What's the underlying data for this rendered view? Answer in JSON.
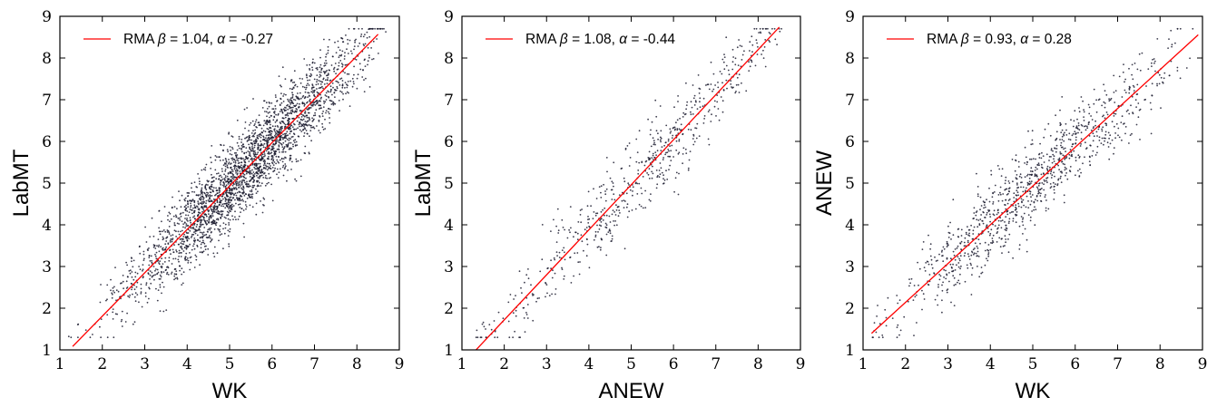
{
  "chart_data": [
    {
      "type": "scatter",
      "xlabel": "WK",
      "ylabel": "LabMT",
      "xlim": [
        1,
        9
      ],
      "ylim": [
        1,
        9
      ],
      "xticks": [
        "1",
        "2",
        "3",
        "4",
        "5",
        "6",
        "7",
        "8",
        "9"
      ],
      "yticks": [
        "1",
        "2",
        "3",
        "4",
        "5",
        "6",
        "7",
        "8",
        "9"
      ],
      "grid": false,
      "legend_position": "top-left",
      "legend": {
        "prefix": "RMA ",
        "beta_symbol": "β",
        "beta_text": " = 1.04, ",
        "alpha_symbol": "α",
        "alpha_text": " = -0.27"
      },
      "fit": {
        "slope": 1.04,
        "intercept": -0.27,
        "x_range": [
          1.3,
          8.5
        ],
        "color": "#ff0000"
      },
      "scatter": {
        "n": 2700,
        "x_mean": 5.4,
        "x_sd": 1.35,
        "x_range": [
          1.2,
          8.7
        ],
        "noise_sd": 0.5,
        "color": "#1a1a2e",
        "seed": 11
      }
    },
    {
      "type": "scatter",
      "xlabel": "ANEW",
      "ylabel": "LabMT",
      "xlim": [
        1,
        9
      ],
      "ylim": [
        1,
        9
      ],
      "xticks": [
        "1",
        "2",
        "3",
        "4",
        "5",
        "6",
        "7",
        "8",
        "9"
      ],
      "yticks": [
        "1",
        "2",
        "3",
        "4",
        "5",
        "6",
        "7",
        "8",
        "9"
      ],
      "grid": false,
      "legend_position": "top-left",
      "legend": {
        "prefix": "RMA ",
        "beta_symbol": "β",
        "beta_text": " = 1.08, ",
        "alpha_symbol": "α",
        "alpha_text": " = -0.44"
      },
      "fit": {
        "slope": 1.08,
        "intercept": -0.44,
        "x_range": [
          1.3,
          8.5
        ],
        "color": "#ff0000"
      },
      "scatter": {
        "n": 620,
        "x_mean": 5.3,
        "x_sd": 1.9,
        "x_range": [
          1.3,
          8.6
        ],
        "noise_sd": 0.45,
        "color": "#1a1a2e",
        "seed": 23
      }
    },
    {
      "type": "scatter",
      "xlabel": "WK",
      "ylabel": "ANEW",
      "xlim": [
        1,
        9
      ],
      "ylim": [
        1,
        9
      ],
      "xticks": [
        "1",
        "2",
        "3",
        "4",
        "5",
        "6",
        "7",
        "8",
        "9"
      ],
      "yticks": [
        "1",
        "2",
        "3",
        "4",
        "5",
        "6",
        "7",
        "8",
        "9"
      ],
      "grid": false,
      "legend_position": "top-left",
      "legend": {
        "prefix": "RMA ",
        "beta_symbol": "β",
        "beta_text": " = 0.93, ",
        "alpha_symbol": "α",
        "alpha_text": " = 0.28"
      },
      "fit": {
        "slope": 0.93,
        "intercept": 0.28,
        "x_range": [
          1.2,
          8.9
        ],
        "color": "#ff0000"
      },
      "scatter": {
        "n": 1000,
        "x_mean": 5.0,
        "x_sd": 1.7,
        "x_range": [
          1.2,
          8.8
        ],
        "noise_sd": 0.5,
        "color": "#1a1a2e",
        "seed": 37
      }
    }
  ]
}
